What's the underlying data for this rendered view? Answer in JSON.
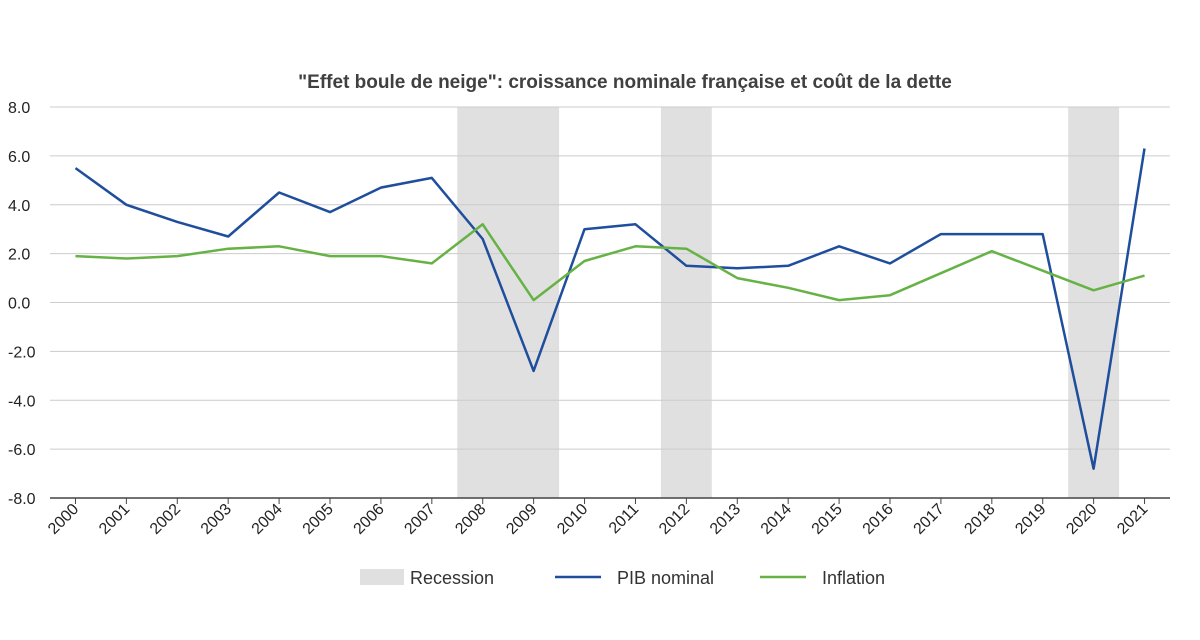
{
  "chart_data": {
    "type": "line",
    "title": "\"Effet boule de neige\": croissance nominale française et coût de la dette",
    "xlabel": "",
    "ylabel": "",
    "categories": [
      "2000",
      "2001",
      "2002",
      "2003",
      "2004",
      "2005",
      "2006",
      "2007",
      "2008",
      "2009",
      "2010",
      "2011",
      "2012",
      "2013",
      "2014",
      "2015",
      "2016",
      "2017",
      "2018",
      "2019",
      "2020",
      "2021"
    ],
    "ylim": [
      -8,
      8
    ],
    "yticks": [
      "8.0",
      "6.0",
      "4.0",
      "2.0",
      "0.0",
      "-2.0",
      "-4.0",
      "-6.0",
      "-8.0"
    ],
    "grid": true,
    "legend_position": "bottom",
    "recession_periods": [
      [
        "2008",
        "2009"
      ],
      [
        "2012",
        "2012"
      ],
      [
        "2020",
        "2020"
      ]
    ],
    "series": [
      {
        "name": "PIB nominal",
        "color": "#1f4e9c",
        "values": [
          5.5,
          4.0,
          3.3,
          2.7,
          4.5,
          3.7,
          4.7,
          5.1,
          2.6,
          -2.8,
          3.0,
          3.2,
          1.5,
          1.4,
          1.5,
          2.3,
          1.6,
          2.8,
          2.8,
          2.8,
          -6.8,
          6.3
        ]
      },
      {
        "name": "Inflation",
        "color": "#66b245",
        "values": [
          1.9,
          1.8,
          1.9,
          2.2,
          2.3,
          1.9,
          1.9,
          1.6,
          3.2,
          0.1,
          1.7,
          2.3,
          2.2,
          1.0,
          0.6,
          0.1,
          0.3,
          1.2,
          2.1,
          1.3,
          0.5,
          1.1
        ]
      }
    ],
    "recession_legend": {
      "name": "Recession",
      "color": "#e0e0e0"
    }
  }
}
